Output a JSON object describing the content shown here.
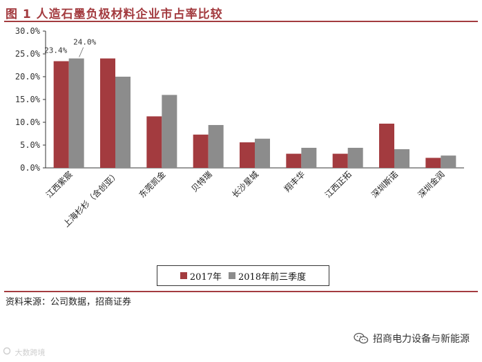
{
  "figure": {
    "title": "图 1 人造石墨负极材料企业市占率比较"
  },
  "chart_data": {
    "type": "bar",
    "categories": [
      "江西紫宸",
      "上海杉杉（含创亚）",
      "东莞凯金",
      "贝特瑞",
      "长沙星城",
      "翔丰华",
      "江西正拓",
      "深圳斯诺",
      "深圳金润"
    ],
    "series": [
      {
        "name": "2017年",
        "color": "#a33b3f",
        "values": [
          23.4,
          24.0,
          11.3,
          7.3,
          5.6,
          3.1,
          3.1,
          9.7,
          2.2
        ]
      },
      {
        "name": "2018年前三季度",
        "color": "#8c8c8c",
        "values": [
          24.0,
          20.0,
          16.0,
          9.4,
          6.4,
          4.4,
          4.4,
          4.1,
          2.7
        ]
      }
    ],
    "data_labels": [
      {
        "series": 0,
        "index": 0,
        "text": "23.4%"
      },
      {
        "series": 1,
        "index": 0,
        "text": "24.0%"
      }
    ],
    "yticks": [
      "0.0%",
      "5.0%",
      "10.0%",
      "15.0%",
      "20.0%",
      "25.0%",
      "30.0%"
    ],
    "ylim": [
      0,
      30
    ],
    "legend_position": "bottom",
    "grid": false
  },
  "footer": {
    "source": "资料来源：公司数据，招商证券",
    "brand": "招商电力设备与新能源",
    "watermark": "大数跨境"
  },
  "icons": {
    "brand_icon": "wechat-icon",
    "watermark_icon": "watermark-logo-icon"
  }
}
